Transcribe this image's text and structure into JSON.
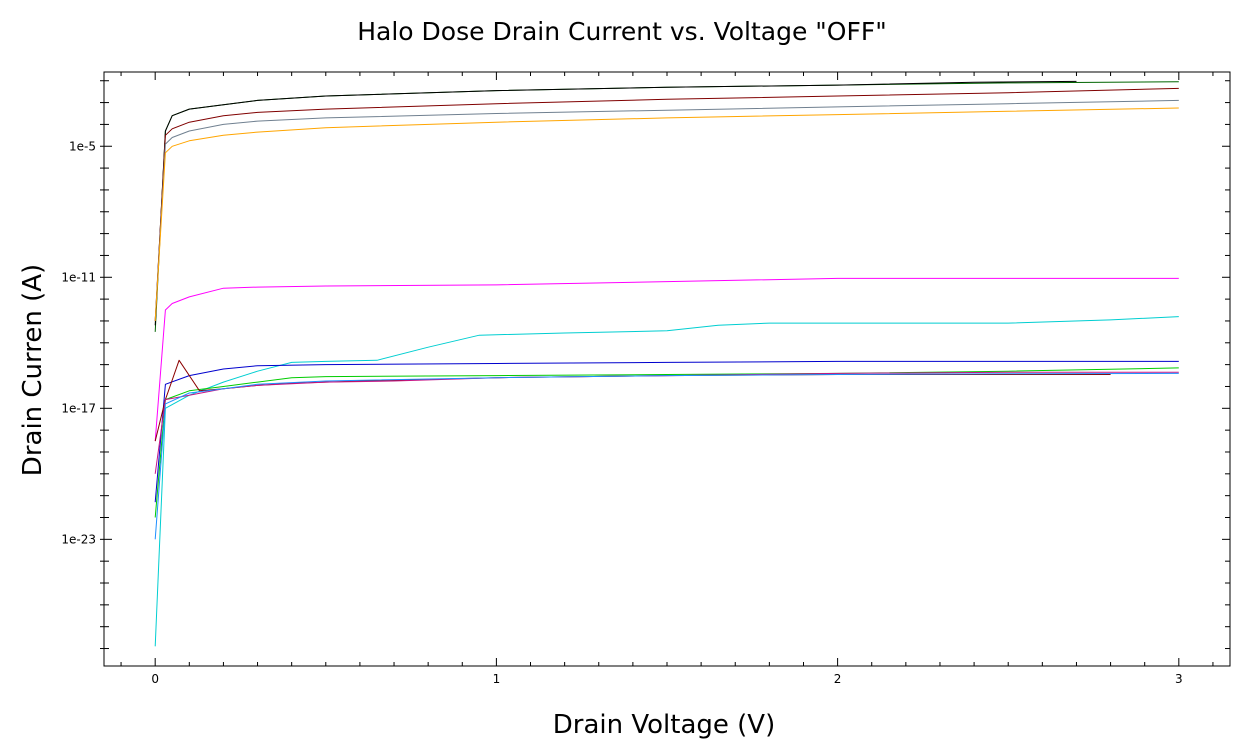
{
  "chart_data": {
    "type": "line",
    "title": "Halo Dose Drain Current vs. Voltage \"OFF\"",
    "xlabel": "Drain Voltage (V)",
    "ylabel": "Drain Curren (A)",
    "x_scale": "linear",
    "y_scale": "log",
    "xlim": [
      -0.15,
      3.15
    ],
    "ylim_log10": [
      -28.8,
      -1.6
    ],
    "x_ticks": [
      0,
      1,
      2,
      3
    ],
    "x_tick_labels": [
      "0",
      "1",
      "2",
      "3"
    ],
    "y_ticks_log10": [
      -5,
      -11,
      -17,
      -23
    ],
    "y_tick_labels": [
      "1e-5",
      "1e-11",
      "1e-17",
      "1e-23"
    ],
    "grid": false,
    "legend": "none",
    "series": [
      {
        "color": "#006400",
        "x": [
          0,
          0.03,
          0.05,
          0.1,
          0.2,
          0.3,
          0.5,
          1,
          1.5,
          2,
          2.5,
          3
        ],
        "log10_y": [
          -13.5,
          -4.3,
          -3.6,
          -3.3,
          -3.1,
          -2.9,
          -2.7,
          -2.45,
          -2.3,
          -2.2,
          -2.1,
          -2.05
        ]
      },
      {
        "color": "#000000",
        "x": [
          0,
          0.03,
          0.05,
          0.1,
          0.2,
          0.3,
          0.5,
          1,
          1.5,
          2,
          2.4,
          2.7
        ],
        "log10_y": [
          -13.2,
          -4.3,
          -3.6,
          -3.3,
          -3.1,
          -2.9,
          -2.7,
          -2.45,
          -2.3,
          -2.2,
          -2.07,
          -2.03
        ]
      },
      {
        "color": "#800000",
        "x": [
          0,
          0.03,
          0.05,
          0.1,
          0.2,
          0.3,
          0.5,
          1,
          1.5,
          2,
          2.5,
          3
        ],
        "log10_y": [
          -13,
          -4.5,
          -4.2,
          -3.9,
          -3.6,
          -3.45,
          -3.3,
          -3.05,
          -2.85,
          -2.7,
          -2.55,
          -2.35
        ]
      },
      {
        "color": "#708090",
        "x": [
          0,
          0.03,
          0.05,
          0.1,
          0.2,
          0.3,
          0.5,
          1,
          1.5,
          2,
          2.5,
          3
        ],
        "log10_y": [
          -13,
          -4.9,
          -4.6,
          -4.3,
          -4.0,
          -3.85,
          -3.7,
          -3.5,
          -3.35,
          -3.2,
          -3.05,
          -2.9
        ]
      },
      {
        "color": "#FFA500",
        "x": [
          0,
          0.03,
          0.05,
          0.1,
          0.2,
          0.3,
          0.5,
          1,
          1.5,
          2,
          2.5,
          3
        ],
        "log10_y": [
          -13,
          -5.3,
          -5.0,
          -4.75,
          -4.5,
          -4.35,
          -4.15,
          -3.9,
          -3.7,
          -3.55,
          -3.4,
          -3.25
        ]
      },
      {
        "color": "#FF00FF",
        "x": [
          0,
          0.03,
          0.05,
          0.1,
          0.2,
          0.3,
          0.5,
          1,
          1.5,
          2,
          2.5,
          3
        ],
        "log10_y": [
          -18.5,
          -12.5,
          -12.2,
          -11.9,
          -11.5,
          -11.45,
          -11.4,
          -11.35,
          -11.2,
          -11.05,
          -11.05,
          -11.05
        ]
      },
      {
        "color": "#00CED1",
        "x": [
          0,
          0.03,
          0.1,
          0.2,
          0.3,
          0.4,
          0.5,
          0.65,
          0.8,
          0.95,
          1.2,
          1.5,
          1.65,
          1.8,
          2.2,
          2.5,
          2.8,
          3
        ],
        "log10_y": [
          -27.9,
          -17,
          -16.4,
          -15.8,
          -15.3,
          -14.9,
          -14.85,
          -14.8,
          -14.2,
          -13.65,
          -13.55,
          -13.45,
          -13.2,
          -13.1,
          -13.1,
          -13.1,
          -12.95,
          -12.8
        ]
      },
      {
        "color": "#0000CD",
        "x": [
          0,
          0.03,
          0.1,
          0.2,
          0.3,
          0.5,
          1,
          1.5,
          2,
          2.5,
          3
        ],
        "log10_y": [
          -21.3,
          -15.9,
          -15.5,
          -15.2,
          -15.05,
          -15.0,
          -14.95,
          -14.9,
          -14.85,
          -14.85,
          -14.85
        ]
      },
      {
        "color": "#00CC00",
        "x": [
          0,
          0.03,
          0.1,
          0.2,
          0.3,
          0.4,
          0.5,
          1,
          1.5,
          2,
          2.5,
          3
        ],
        "log10_y": [
          -22,
          -16.6,
          -16.2,
          -16,
          -15.8,
          -15.6,
          -15.55,
          -15.5,
          -15.45,
          -15.4,
          -15.3,
          -15.15
        ]
      },
      {
        "color": "#8B0000",
        "x": [
          0,
          0.03,
          0.07,
          0.13,
          0.2,
          0.3,
          0.4,
          0.6,
          1,
          1.5,
          2,
          2.5,
          2.8
        ],
        "log10_y": [
          -18.5,
          -16.6,
          -14.8,
          -16.2,
          -16.1,
          -15.95,
          -15.85,
          -15.75,
          -15.6,
          -15.5,
          -15.45,
          -15.45,
          -15.45
        ]
      },
      {
        "color": "#C71585",
        "x": [
          0,
          0.03,
          0.1,
          0.2,
          0.3,
          0.5,
          0.7,
          1,
          1.5,
          2,
          2.5,
          3
        ],
        "log10_y": [
          -20,
          -16.6,
          -16.4,
          -16.1,
          -15.95,
          -15.8,
          -15.75,
          -15.6,
          -15.5,
          -15.4,
          -15.35,
          -15.35
        ]
      },
      {
        "color": "#1E90FF",
        "x": [
          0,
          0.03,
          0.1,
          0.2,
          0.3,
          0.5,
          1,
          1.5,
          2,
          2.5,
          3
        ],
        "log10_y": [
          -23,
          -16.8,
          -16.3,
          -16.1,
          -15.9,
          -15.75,
          -15.6,
          -15.5,
          -15.45,
          -15.42,
          -15.4
        ]
      }
    ]
  }
}
